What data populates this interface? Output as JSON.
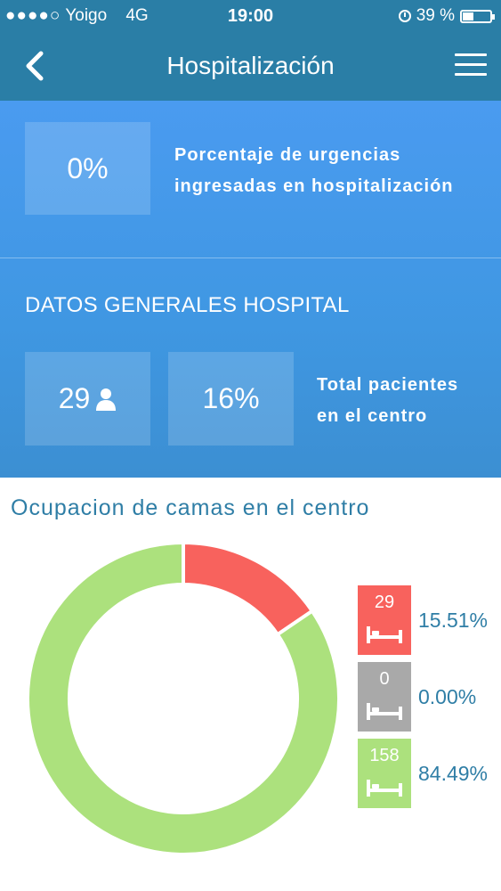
{
  "status_bar": {
    "signal": "●●●●○",
    "carrier": "Yoigo",
    "network": "4G",
    "time": "19:00",
    "battery": "39 %",
    "battery_level": 0.39
  },
  "nav": {
    "title": "Hospitalización",
    "back_icon": "chevron-left-icon",
    "menu_icon": "hamburger-menu-icon"
  },
  "urgencias": {
    "value": "0%",
    "description_line1": "Porcentaje de urgencias",
    "description_line2": "ingresadas en hospitalización"
  },
  "general": {
    "section_title": "DATOS GENERALES HOSPITAL",
    "patients_value": "29",
    "patients_percent": "16%",
    "description_line1": "Total pacientes",
    "description_line2": "en el centro"
  },
  "colors": {
    "header": "#2a7ea6",
    "panel": "#4a9bf0",
    "occupied": "#f8625d",
    "unavailable": "#a9a9a9",
    "free": "#ace17d",
    "accent_text": "#2f7ea6"
  },
  "chart_data": {
    "type": "pie",
    "title": "Ocupacion de camas en el centro",
    "donut": true,
    "series": [
      {
        "count": 29,
        "percent_label": "15.51%",
        "value": 15.51,
        "color": "#f8625d"
      },
      {
        "count": 0,
        "percent_label": "0.00%",
        "value": 0.0,
        "color": "#a9a9a9"
      },
      {
        "count": 158,
        "percent_label": "84.49%",
        "value": 84.49,
        "color": "#ace17d"
      }
    ]
  }
}
